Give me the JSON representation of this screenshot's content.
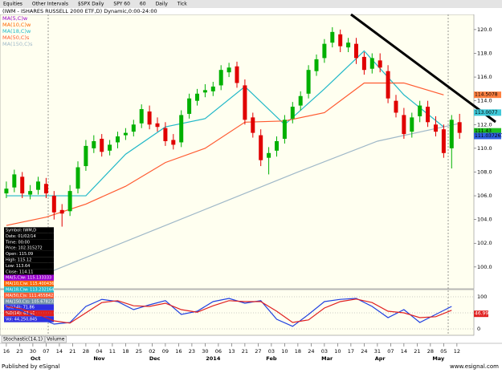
{
  "toolbar": [
    "Equities",
    "Other Intervals",
    "$SPX Daily",
    "SPY 60",
    "60",
    "Daily",
    "Tick"
  ],
  "chart_data": {
    "type": "candlestick",
    "title": "(IWM - ISHARES RUSSELL 2000 ETF,D) Dynamic,0:00-24:00",
    "x": [
      0,
      3,
      6,
      9,
      12,
      15,
      18,
      21,
      24,
      27,
      30,
      33,
      36,
      39,
      42,
      45,
      48,
      51,
      54,
      57,
      60,
      63,
      66,
      69,
      72,
      75,
      78,
      81,
      84,
      87,
      90,
      93,
      96,
      99,
      102,
      105,
      108,
      111,
      114,
      117,
      120,
      123,
      126,
      129,
      132,
      135,
      138,
      141,
      144,
      147,
      150,
      153,
      156,
      159,
      162,
      165,
      168,
      171
    ],
    "open": [
      106.2,
      106.7,
      107.6,
      106.1,
      106.5,
      107.0,
      106.0,
      104.8,
      104.7,
      106.6,
      108.5,
      110.0,
      110.8,
      109.8,
      110.5,
      111.1,
      111.4,
      112.1,
      113.1,
      112.1,
      111.7,
      110.7,
      110.5,
      112.9,
      114.0,
      114.7,
      114.8,
      115.3,
      116.4,
      116.9,
      115.3,
      112.6,
      111.1,
      109.2,
      109.8,
      110.8,
      112.5,
      113.6,
      114.6,
      116.5,
      117.6,
      118.9,
      119.6,
      118.5,
      118.8,
      117.7,
      116.7,
      117.4,
      116.5,
      114.0,
      112.8,
      111.4,
      112.7,
      113.5,
      112.0,
      111.6,
      110.0,
      112.2
    ],
    "high": [
      107.2,
      108.2,
      108.0,
      106.9,
      107.6,
      107.5,
      106.4,
      105.3,
      106.9,
      108.9,
      110.7,
      111.1,
      111.2,
      110.7,
      111.4,
      111.7,
      112.4,
      113.7,
      113.6,
      112.6,
      112.2,
      111.2,
      113.2,
      114.6,
      115.0,
      115.4,
      115.6,
      117.0,
      117.2,
      117.3,
      115.8,
      113.0,
      111.6,
      110.1,
      111.0,
      112.8,
      113.9,
      114.8,
      117.0,
      117.9,
      119.2,
      120.2,
      120.0,
      119.3,
      119.3,
      118.1,
      118.0,
      118.0,
      117.0,
      114.5,
      113.4,
      113.0,
      114.0,
      114.0,
      112.7,
      112.0,
      112.8,
      112.9
    ],
    "low": [
      105.8,
      106.3,
      105.8,
      105.7,
      106.1,
      105.8,
      104.0,
      103.4,
      104.3,
      106.2,
      108.1,
      109.6,
      109.3,
      109.4,
      110.0,
      110.7,
      111.0,
      111.7,
      111.6,
      111.4,
      110.2,
      109.9,
      110.1,
      112.5,
      113.6,
      114.3,
      114.4,
      114.9,
      116.0,
      115.1,
      112.0,
      110.9,
      108.5,
      107.8,
      109.3,
      110.4,
      112.1,
      113.2,
      114.2,
      116.1,
      117.2,
      118.5,
      118.1,
      118.1,
      117.1,
      116.2,
      116.3,
      116.4,
      113.8,
      112.6,
      110.8,
      110.9,
      112.2,
      111.8,
      111.0,
      109.2,
      108.3,
      110.8
    ],
    "close": [
      106.6,
      107.8,
      106.2,
      106.4,
      107.2,
      106.2,
      104.6,
      104.5,
      106.4,
      108.4,
      110.2,
      110.6,
      109.7,
      110.3,
      111.0,
      111.3,
      112.0,
      113.3,
      112.0,
      111.8,
      110.6,
      110.3,
      112.8,
      114.2,
      114.6,
      114.9,
      115.2,
      116.6,
      116.8,
      115.5,
      112.4,
      111.3,
      109.0,
      109.6,
      110.6,
      112.4,
      113.5,
      114.4,
      116.6,
      117.5,
      118.8,
      119.8,
      118.6,
      118.9,
      117.6,
      116.6,
      117.6,
      116.8,
      114.2,
      113.0,
      111.2,
      112.6,
      113.6,
      112.2,
      111.4,
      109.6,
      112.4,
      111.3
    ],
    "up_color": "#00b000",
    "down_color": "#e00000",
    "other_studies": [
      {
        "name": "MA(5,C)w",
        "color": "#9900cc"
      },
      {
        "name": "MA(10,C)w",
        "color": "#ff6600"
      }
    ],
    "series": [
      {
        "name": "MA(18,C)w",
        "color": "#22b8c8",
        "x": [
          0,
          15,
          30,
          45,
          60,
          75,
          90,
          105,
          120,
          135,
          150,
          165
        ],
        "values": [
          106.0,
          106.0,
          106.0,
          109.5,
          111.8,
          112.5,
          115.2,
          112.0,
          115.0,
          118.2,
          114.5,
          111.8
        ]
      },
      {
        "name": "MA(50,C)s",
        "color": "#ff5a30",
        "x": [
          0,
          15,
          30,
          45,
          60,
          75,
          90,
          105,
          120,
          135,
          150,
          165
        ],
        "values": [
          103.5,
          104.2,
          105.3,
          106.8,
          108.8,
          110.0,
          112.2,
          112.3,
          113.0,
          115.5,
          115.5,
          114.5
        ]
      },
      {
        "name": "MA(150,C)s",
        "color": "#9fb8c8",
        "x": [
          10,
          60,
          110,
          140,
          171
        ],
        "values": [
          99.0,
          103.5,
          108.0,
          110.6,
          112.1
        ]
      }
    ],
    "xlim": [
      -2.4,
      176.4
    ],
    "ylim": [
      98.3,
      120.6
    ],
    "yticks": [
      {
        "value": 100,
        "label": "100.0"
      },
      {
        "value": 102,
        "label": "102.0"
      },
      {
        "value": 104,
        "label": "104.0"
      },
      {
        "value": 106,
        "label": "106.0"
      },
      {
        "value": 108,
        "label": "108.0"
      },
      {
        "value": 110,
        "label": "110.0"
      },
      {
        "value": 112,
        "label": "112.0"
      },
      {
        "value": 114,
        "label": "114.0"
      },
      {
        "value": 116,
        "label": "116.0"
      },
      {
        "value": 118,
        "label": "118.0"
      },
      {
        "value": 120,
        "label": "120.0"
      }
    ],
    "xticks": [
      {
        "value": 0,
        "label": "16"
      },
      {
        "value": 5,
        "label": "23"
      },
      {
        "value": 10,
        "label": "30"
      },
      {
        "value": 15,
        "label": "07"
      },
      {
        "value": 20,
        "label": "14"
      },
      {
        "value": 25,
        "label": "21"
      },
      {
        "value": 30,
        "label": "28"
      },
      {
        "value": 35,
        "label": "04"
      },
      {
        "value": 40,
        "label": "11"
      },
      {
        "value": 45,
        "label": "18"
      },
      {
        "value": 50,
        "label": "25"
      },
      {
        "value": 55,
        "label": "02"
      },
      {
        "value": 60,
        "label": "09"
      },
      {
        "value": 65,
        "label": "16"
      },
      {
        "value": 70,
        "label": "23"
      },
      {
        "value": 75,
        "label": "30"
      },
      {
        "value": 80,
        "label": "06"
      },
      {
        "value": 85,
        "label": "13"
      },
      {
        "value": 90,
        "label": "21"
      },
      {
        "value": 95,
        "label": "27"
      },
      {
        "value": 100,
        "label": "03"
      },
      {
        "value": 105,
        "label": "10"
      },
      {
        "value": 110,
        "label": "18"
      },
      {
        "value": 115,
        "label": "24"
      },
      {
        "value": 120,
        "label": "03"
      },
      {
        "value": 125,
        "label": "10"
      },
      {
        "value": 130,
        "label": "17"
      },
      {
        "value": 135,
        "label": "24"
      },
      {
        "value": 140,
        "label": "31"
      },
      {
        "value": 145,
        "label": "07"
      },
      {
        "value": 150,
        "label": "14"
      },
      {
        "value": 155,
        "label": "21"
      },
      {
        "value": 160,
        "label": "28"
      },
      {
        "value": 165,
        "label": "05"
      },
      {
        "value": 170,
        "label": "12"
      }
    ],
    "month_ticks": [
      {
        "value": 11,
        "label": "Oct"
      },
      {
        "value": 35,
        "label": "Nov"
      },
      {
        "value": 56,
        "label": "Dec"
      },
      {
        "value": 78,
        "label": "2014"
      },
      {
        "value": 100,
        "label": "Feb"
      },
      {
        "value": 121,
        "label": "Mar"
      },
      {
        "value": 141,
        "label": "Apr"
      },
      {
        "value": 163,
        "label": "May"
      }
    ],
    "price_flags": [
      {
        "value": 114.5078,
        "label": "114.5078",
        "color": "#ff8040"
      },
      {
        "value": 113.0077,
        "label": "113.0077",
        "color": "#40c8d8"
      },
      {
        "value": 111.43,
        "label": "111.43",
        "color": "#20c020"
      },
      {
        "value": 111.037267,
        "label": "111.037267",
        "color": "#3060e0"
      }
    ],
    "info_box": [
      {
        "text": "Symbol: IWM,D",
        "bg": "#000000"
      },
      {
        "text": "Date: 01/02/14",
        "bg": "#000000"
      },
      {
        "text": "Time: 00:00",
        "bg": "#000000"
      },
      {
        "text": "Price: 102.315272",
        "bg": "#000000"
      },
      {
        "text": "Open: 115.09",
        "bg": "#000000"
      },
      {
        "text": "High: 115.12",
        "bg": "#000000"
      },
      {
        "text": "Low: 113.64",
        "bg": "#000000"
      },
      {
        "text": "Close: 114.11",
        "bg": "#000000"
      },
      {
        "text": "MA(5,C)w: 115.133333",
        "bg": "#9900cc"
      },
      {
        "text": "MA(10,C)w: 115.400436",
        "bg": "#ff6600"
      },
      {
        "text": "MA(18,C)w: 113.232164",
        "bg": "#22b8c8"
      },
      {
        "text": "MA(50,C)s: 111.455842",
        "bg": "#ff5a30"
      },
      {
        "text": "MA(150,C)s: 105.678232",
        "bg": "#7090a8"
      },
      {
        "text": "%K(14): 71.86",
        "bg": "#3030e0"
      },
      {
        "text": "%D(14): 63.16",
        "bg": "#e02020"
      },
      {
        "text": "Vol: 44,250,845",
        "bg": "#3030e0"
      }
    ],
    "stochastic": {
      "ylim": [
        -10,
        110
      ],
      "yticks": [
        0,
        50,
        100
      ],
      "x": [
        0,
        6,
        12,
        18,
        24,
        30,
        36,
        42,
        48,
        54,
        60,
        66,
        72,
        78,
        84,
        90,
        96,
        102,
        108,
        114,
        120,
        126,
        132,
        138,
        144,
        150,
        156,
        162,
        168
      ],
      "series": [
        {
          "name": "%K",
          "color": "#2040e0",
          "values": [
            75,
            55,
            35,
            15,
            20,
            70,
            92,
            85,
            60,
            75,
            88,
            45,
            55,
            85,
            95,
            80,
            88,
            30,
            8,
            45,
            85,
            92,
            95,
            70,
            35,
            60,
            20,
            45,
            70
          ]
        },
        {
          "name": "%D",
          "color": "#e02020",
          "values": [
            70,
            62,
            45,
            25,
            18,
            50,
            82,
            88,
            72,
            70,
            80,
            60,
            52,
            72,
            88,
            85,
            85,
            55,
            20,
            28,
            65,
            85,
            93,
            82,
            55,
            50,
            35,
            38,
            58
          ]
        }
      ],
      "flag": {
        "value": 46.99,
        "label": "46.99",
        "color": "#e02020"
      }
    },
    "tabs": [
      "Stochastic(14,1)",
      "Volume"
    ]
  },
  "footer": {
    "published": "Published by eSignal",
    "site": "www.esignal.com"
  }
}
